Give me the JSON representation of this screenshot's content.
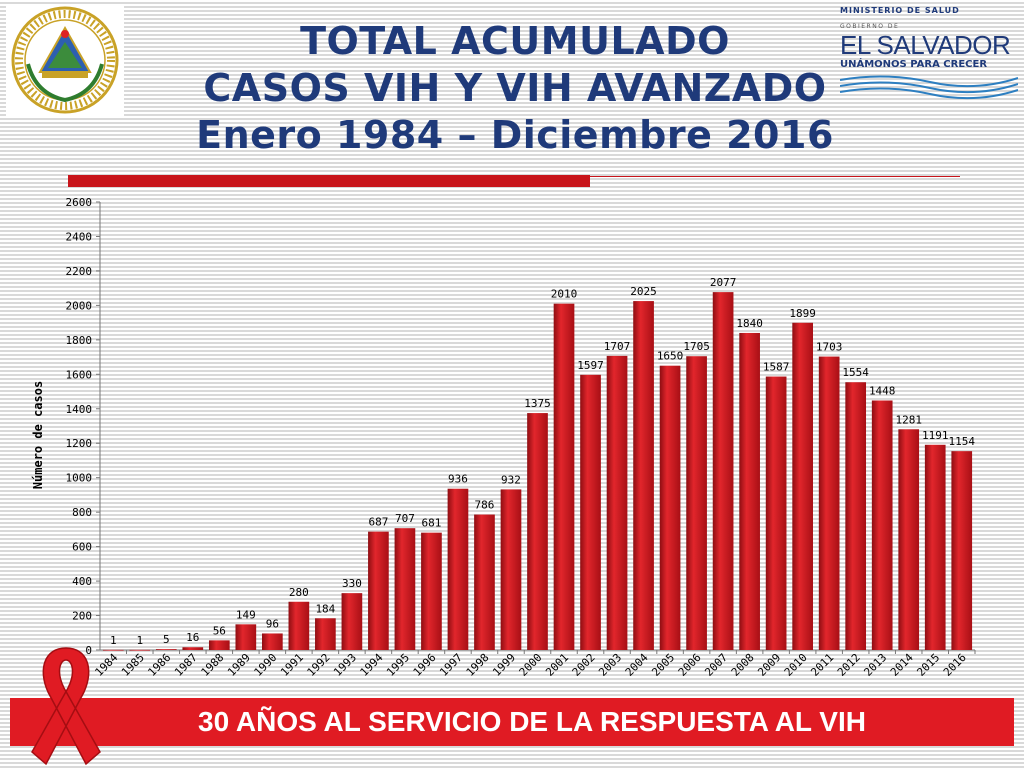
{
  "title": {
    "line1": "TOTAL ACUMULADO",
    "line2": "CASOS VIH Y VIH AVANZADO",
    "line3": "Enero 1984 – Diciembre 2016"
  },
  "logo": {
    "ministry": "MINISTERIO DE SALUD",
    "government": "GOBIERNO DE",
    "country": "EL SALVADOR",
    "motto": "UNÁMONOS PARA CRECER"
  },
  "seal_text": "REPÚBLICA DE EL SALVADOR EN LA AMÉRICA CENTRAL",
  "footer": {
    "text": "30 AÑOS AL SERVICIO DE LA RESPUESTA AL VIH"
  },
  "colors": {
    "bar": "#c8151b",
    "title": "#1f3a7a",
    "banner": "#e01b23"
  },
  "chart_data": {
    "type": "bar",
    "title": "",
    "xlabel": "",
    "ylabel": "Número de casos",
    "ylim": [
      0,
      2600
    ],
    "yticks": [
      0,
      200,
      400,
      600,
      800,
      1000,
      1200,
      1400,
      1600,
      1800,
      2000,
      2200,
      2400,
      2600
    ],
    "grid": false,
    "legend": "none",
    "categories": [
      "1984",
      "1985",
      "1986",
      "1987",
      "1988",
      "1989",
      "1990",
      "1991",
      "1992",
      "1993",
      "1994",
      "1995",
      "1996",
      "1997",
      "1998",
      "1999",
      "2000",
      "2001",
      "2002",
      "2003",
      "2004",
      "2005",
      "2006",
      "2007",
      "2008",
      "2009",
      "2010",
      "2011",
      "2012",
      "2013",
      "2014",
      "2015",
      "2016"
    ],
    "values": [
      1,
      1,
      5,
      16,
      56,
      149,
      96,
      280,
      184,
      330,
      687,
      707,
      681,
      936,
      786,
      932,
      1375,
      2010,
      1597,
      1707,
      2025,
      1650,
      1705,
      2077,
      1840,
      1587,
      1899,
      1703,
      1554,
      1448,
      1281,
      1191,
      1154
    ]
  }
}
